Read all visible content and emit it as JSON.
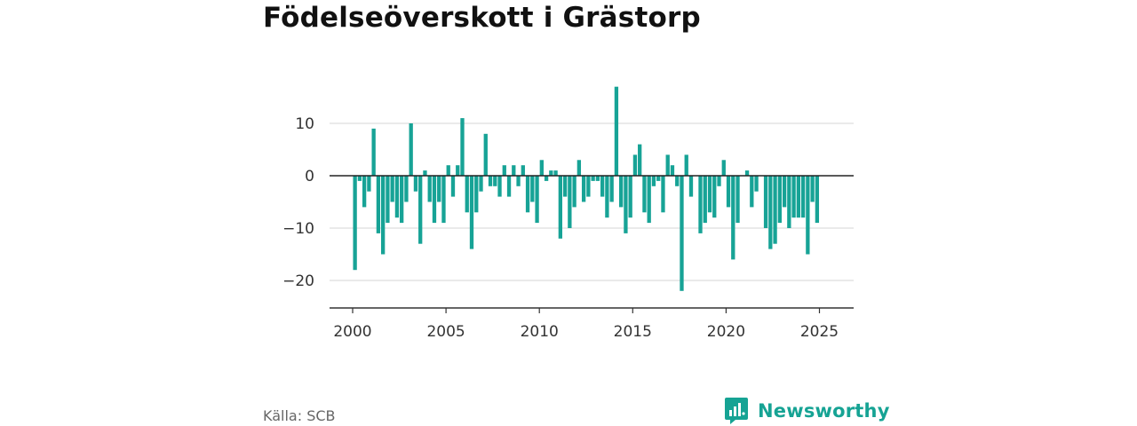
{
  "title": "Födelseöverskott i Grästorp",
  "source": "Källa: SCB",
  "brand": "Newsworthy",
  "colors": {
    "bar": "#17a396",
    "brand": "#16a394",
    "grid": "#dddddd",
    "axis": "#333333",
    "zero": "#222222"
  },
  "chart_data": {
    "type": "bar",
    "title": "Födelseöverskott i Grästorp",
    "xlabel": "",
    "ylabel": "",
    "ylim": [
      -25,
      18
    ],
    "xlim": [
      1999.2,
      2026.8
    ],
    "yticks": [
      10,
      0,
      -10,
      -20
    ],
    "ytick_labels": [
      "10",
      "0",
      "−10",
      "−20"
    ],
    "xticks": [
      2000,
      2005,
      2010,
      2015,
      2020,
      2025
    ],
    "xtick_labels": [
      "2000",
      "2005",
      "2010",
      "2015",
      "2020",
      "2025"
    ],
    "grid": true,
    "frequency": "quarterly",
    "start": "2000 Q1",
    "values": [
      -18,
      -1,
      -6,
      -3,
      9,
      -11,
      -15,
      -9,
      -5,
      -8,
      -9,
      -5,
      10,
      -3,
      -13,
      1,
      -5,
      -9,
      -5,
      -9,
      2,
      -4,
      2,
      11,
      -7,
      -14,
      -7,
      -3,
      8,
      -2,
      -2,
      -4,
      2,
      -4,
      2,
      -2,
      2,
      -7,
      -5,
      -9,
      3,
      -1,
      1,
      1,
      -12,
      -4,
      -10,
      -6,
      3,
      -5,
      -4,
      -1,
      -1,
      -4,
      -8,
      -5,
      17,
      -6,
      -11,
      -8,
      4,
      6,
      -7,
      -9,
      -2,
      -1,
      -7,
      4,
      2,
      -2,
      -22,
      4,
      -4,
      0,
      -11,
      -9,
      -7,
      -8,
      -2,
      3,
      -6,
      -16,
      -9,
      0,
      1,
      -6,
      -3,
      0,
      -10,
      -14,
      -13,
      -9,
      -6,
      -10,
      -8,
      -8,
      -8,
      -15,
      -5,
      -9
    ]
  }
}
